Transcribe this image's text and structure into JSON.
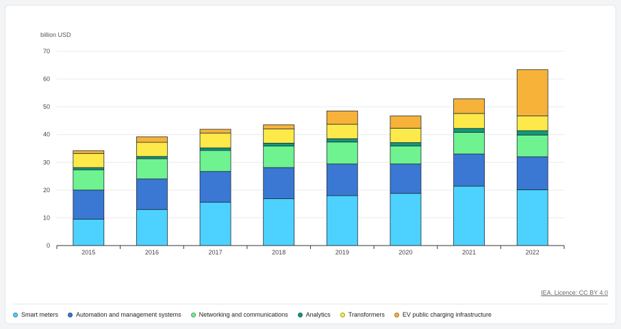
{
  "source_link": "IEA. Licence: CC BY 4.0",
  "chart_data": {
    "type": "bar",
    "stacked": true,
    "ylabel": "billion USD",
    "ylim": [
      0,
      70
    ],
    "yticks": [
      0,
      10,
      20,
      30,
      40,
      50,
      60,
      70
    ],
    "grid": true,
    "legend_position": "bottom",
    "categories": [
      "2015",
      "2016",
      "2017",
      "2018",
      "2019",
      "2020",
      "2021",
      "2022"
    ],
    "series": [
      {
        "name": "Smart meters",
        "color": "#4dd2ff",
        "values": [
          9.5,
          13.0,
          15.6,
          16.9,
          18.0,
          18.8,
          21.4,
          20.1
        ]
      },
      {
        "name": "Automation and management systems",
        "color": "#3a78d4",
        "values": [
          10.5,
          11.0,
          11.1,
          11.2,
          11.4,
          10.6,
          11.6,
          11.9
        ]
      },
      {
        "name": "Networking and communications",
        "color": "#6ff290",
        "values": [
          7.3,
          7.3,
          7.6,
          7.8,
          7.9,
          6.5,
          7.8,
          7.8
        ]
      },
      {
        "name": "Analytics",
        "color": "#0f9a7e",
        "values": [
          0.8,
          0.8,
          0.9,
          1.0,
          1.2,
          1.2,
          1.4,
          1.6
        ]
      },
      {
        "name": "Transformers",
        "color": "#fde94a",
        "values": [
          5.1,
          5.1,
          5.3,
          5.1,
          5.2,
          5.2,
          5.4,
          5.3
        ]
      },
      {
        "name": "EV public charging infrastructure",
        "color": "#f7b23a",
        "values": [
          1.0,
          2.0,
          1.4,
          1.5,
          4.8,
          4.4,
          5.3,
          16.7
        ]
      }
    ]
  }
}
